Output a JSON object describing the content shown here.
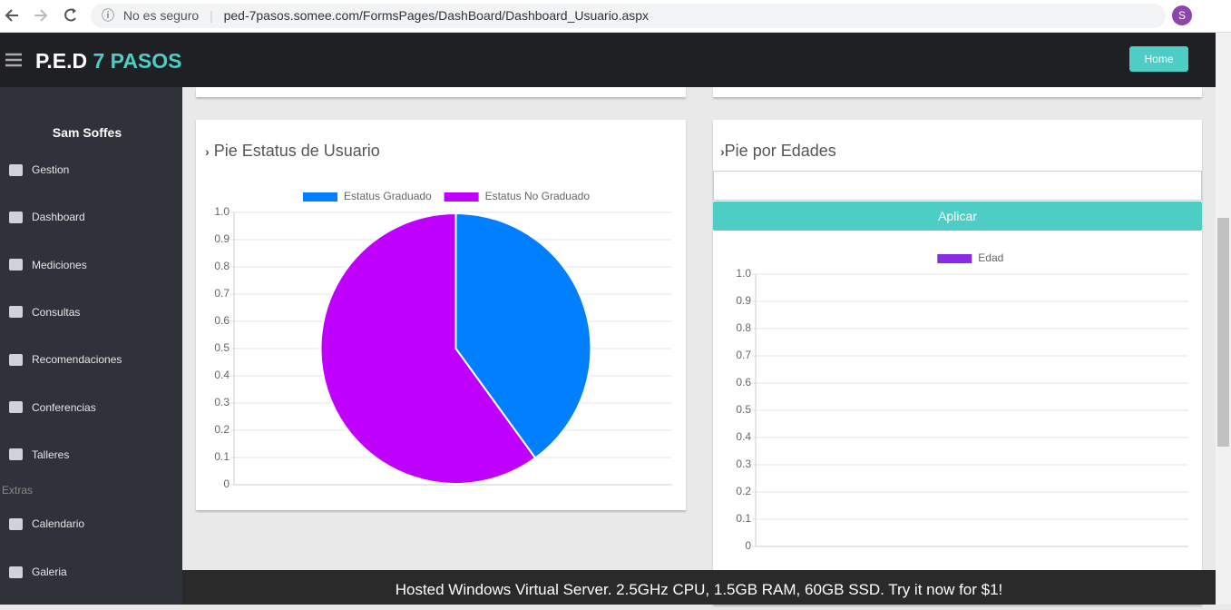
{
  "browser": {
    "security": "No es seguro",
    "url": "ped-7pasos.somee.com/FormsPages/DashBoard/Dashboard_Usuario.aspx",
    "profile": "S"
  },
  "navbar": {
    "brand": "P.E.D",
    "brand_accent": "7 PASOS",
    "button": "Home"
  },
  "sidebar": {
    "user": "Sam Soffes",
    "items": [
      "Gestion",
      "Dashboard",
      "Mediciones",
      "Consultas",
      "Recomendaciones",
      "Conferencias",
      "Talleres"
    ],
    "section": "Extras",
    "extra_items": [
      "Calendario",
      "Galeria"
    ]
  },
  "filter": {
    "button": "Aplicar"
  },
  "ad": "Hosted Windows Virtual Server. 2.5GHz CPU, 1.5GB RAM, 60GB SSD. Try it now for $1!",
  "chart_data": [
    {
      "type": "pie",
      "title": "Pie Estatus de Usuario",
      "categories": [
        "Estatus Graduado",
        "Estatus No Graduado"
      ],
      "values": [
        40,
        60
      ],
      "colors": [
        "#0080ff",
        "#bf00ff"
      ],
      "ylim": [
        0,
        1
      ],
      "yticks": [
        0,
        0.1,
        0.2,
        0.3,
        0.4,
        0.5,
        0.6,
        0.7,
        0.8,
        0.9,
        {
          "value": 1,
          "label": "1.0"
        }
      ],
      "grid": true,
      "legend": "top"
    },
    {
      "type": "bar",
      "title": "Pie por Edades",
      "categories": [],
      "series": [
        {
          "name": "Edad",
          "color": "#8a2be2",
          "values": []
        }
      ],
      "ylim": [
        0,
        1
      ],
      "yticks": [
        0,
        0.1,
        0.2,
        0.3,
        0.4,
        0.5,
        0.6,
        0.7,
        0.8,
        0.9,
        {
          "value": 1,
          "label": "1.0"
        }
      ],
      "grid": true,
      "legend": "top"
    }
  ]
}
